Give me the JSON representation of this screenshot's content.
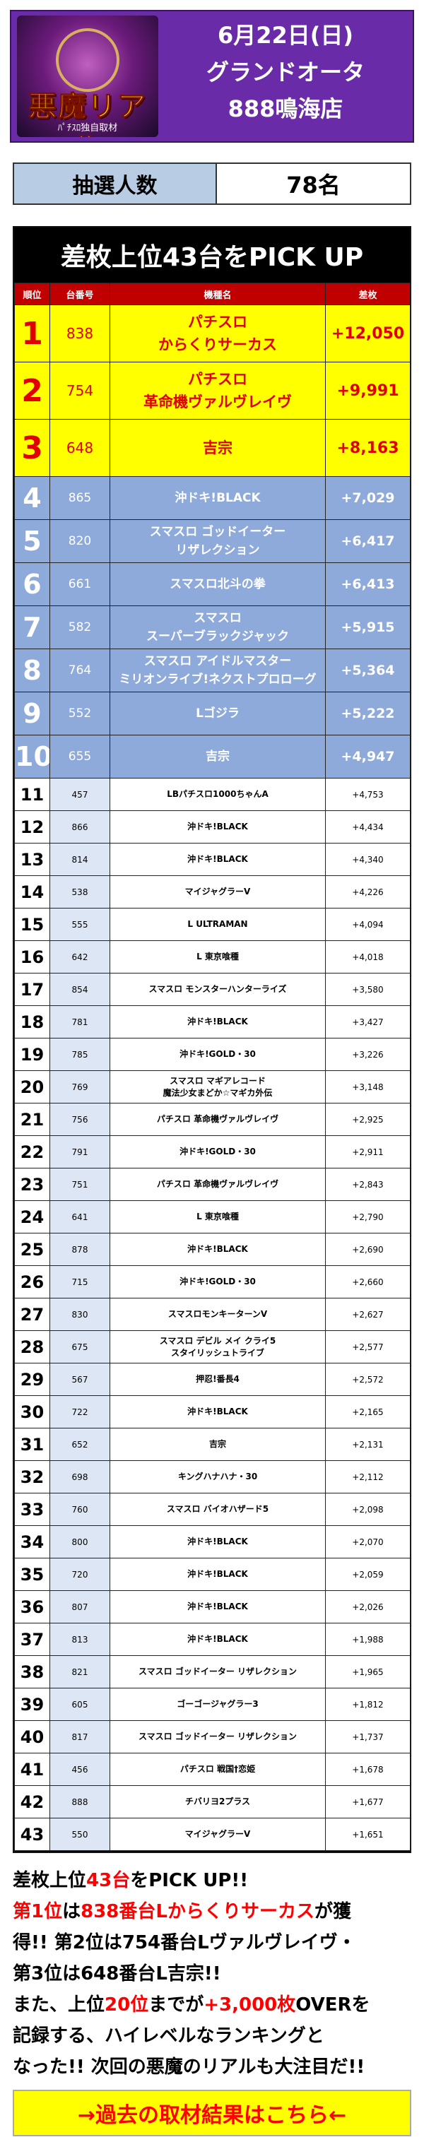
{
  "header": {
    "logo_title": "悪魔リアル",
    "logo_sub": "ﾊﾟﾁｽﾛ独自取材",
    "line1": "6月22日(日)",
    "line2": "グランドオータ",
    "line3": "888鳴海店"
  },
  "lottery": {
    "label": "抽選人数",
    "value": "78名"
  },
  "table": {
    "title": "差枚上位43台をPICK UP",
    "headers": [
      "順位",
      "台番号",
      "機種名",
      "差枚"
    ],
    "rows": [
      {
        "rank": "1",
        "num": "838",
        "name": "パチスロ\nからくりサーカス",
        "diff": "+12,050"
      },
      {
        "rank": "2",
        "num": "754",
        "name": "パチスロ\n革命機ヴァルヴレイヴ",
        "diff": "+9,991"
      },
      {
        "rank": "3",
        "num": "648",
        "name": "吉宗",
        "diff": "+8,163"
      },
      {
        "rank": "4",
        "num": "865",
        "name": "沖ドキ!BLACK",
        "diff": "+7,029"
      },
      {
        "rank": "5",
        "num": "820",
        "name": "スマスロ ゴッドイーター\nリザレクション",
        "diff": "+6,417"
      },
      {
        "rank": "6",
        "num": "661",
        "name": "スマスロ北斗の拳",
        "diff": "+6,413"
      },
      {
        "rank": "7",
        "num": "582",
        "name": "スマスロ\nスーパーブラックジャック",
        "diff": "+5,915"
      },
      {
        "rank": "8",
        "num": "764",
        "name": "スマスロ アイドルマスター\nミリオンライブ!ネクストプロローグ",
        "diff": "+5,364"
      },
      {
        "rank": "9",
        "num": "552",
        "name": "Lゴジラ",
        "diff": "+5,222"
      },
      {
        "rank": "10",
        "num": "655",
        "name": "吉宗",
        "diff": "+4,947"
      },
      {
        "rank": "11",
        "num": "457",
        "name": "LBパチスロ1000ちゃんA",
        "diff": "+4,753"
      },
      {
        "rank": "12",
        "num": "866",
        "name": "沖ドキ!BLACK",
        "diff": "+4,434"
      },
      {
        "rank": "13",
        "num": "814",
        "name": "沖ドキ!BLACK",
        "diff": "+4,340"
      },
      {
        "rank": "14",
        "num": "538",
        "name": "マイジャグラーV",
        "diff": "+4,226"
      },
      {
        "rank": "15",
        "num": "555",
        "name": "L ULTRAMAN",
        "diff": "+4,094"
      },
      {
        "rank": "16",
        "num": "642",
        "name": "L 東京喰種",
        "diff": "+4,018"
      },
      {
        "rank": "17",
        "num": "854",
        "name": "スマスロ モンスターハンターライズ",
        "diff": "+3,580"
      },
      {
        "rank": "18",
        "num": "781",
        "name": "沖ドキ!BLACK",
        "diff": "+3,427"
      },
      {
        "rank": "19",
        "num": "785",
        "name": "沖ドキ!GOLD・30",
        "diff": "+3,226"
      },
      {
        "rank": "20",
        "num": "769",
        "name": "スマスロ マギアレコード\n魔法少女まどか☆マギカ外伝",
        "diff": "+3,148"
      },
      {
        "rank": "21",
        "num": "756",
        "name": "パチスロ 革命機ヴァルヴレイヴ",
        "diff": "+2,925"
      },
      {
        "rank": "22",
        "num": "791",
        "name": "沖ドキ!GOLD・30",
        "diff": "+2,911"
      },
      {
        "rank": "23",
        "num": "751",
        "name": "パチスロ 革命機ヴァルヴレイヴ",
        "diff": "+2,843"
      },
      {
        "rank": "24",
        "num": "641",
        "name": "L 東京喰種",
        "diff": "+2,790"
      },
      {
        "rank": "25",
        "num": "878",
        "name": "沖ドキ!BLACK",
        "diff": "+2,690"
      },
      {
        "rank": "26",
        "num": "715",
        "name": "沖ドキ!GOLD・30",
        "diff": "+2,660"
      },
      {
        "rank": "27",
        "num": "830",
        "name": "スマスロモンキーターンV",
        "diff": "+2,627"
      },
      {
        "rank": "28",
        "num": "675",
        "name": "スマスロ デビル メイ クライ5\nスタイリッシュトライブ",
        "diff": "+2,577"
      },
      {
        "rank": "29",
        "num": "567",
        "name": "押忍!番長4",
        "diff": "+2,572"
      },
      {
        "rank": "30",
        "num": "722",
        "name": "沖ドキ!BLACK",
        "diff": "+2,165"
      },
      {
        "rank": "31",
        "num": "652",
        "name": "吉宗",
        "diff": "+2,131"
      },
      {
        "rank": "32",
        "num": "698",
        "name": "キングハナハナ・30",
        "diff": "+2,112"
      },
      {
        "rank": "33",
        "num": "760",
        "name": "スマスロ バイオハザード5",
        "diff": "+2,098"
      },
      {
        "rank": "34",
        "num": "800",
        "name": "沖ドキ!BLACK",
        "diff": "+2,070"
      },
      {
        "rank": "35",
        "num": "720",
        "name": "沖ドキ!BLACK",
        "diff": "+2,059"
      },
      {
        "rank": "36",
        "num": "807",
        "name": "沖ドキ!BLACK",
        "diff": "+2,026"
      },
      {
        "rank": "37",
        "num": "813",
        "name": "沖ドキ!BLACK",
        "diff": "+1,988"
      },
      {
        "rank": "38",
        "num": "821",
        "name": "スマスロ ゴッドイーター リザレクション",
        "diff": "+1,965"
      },
      {
        "rank": "39",
        "num": "605",
        "name": "ゴーゴージャグラー3",
        "diff": "+1,812"
      },
      {
        "rank": "40",
        "num": "817",
        "name": "スマスロ ゴッドイーター リザレクション",
        "diff": "+1,737"
      },
      {
        "rank": "41",
        "num": "456",
        "name": "パチスロ 戦国†恋姫",
        "diff": "+1,678"
      },
      {
        "rank": "42",
        "num": "888",
        "name": "チバリヨ2プラス",
        "diff": "+1,677"
      },
      {
        "rank": "43",
        "num": "550",
        "name": "マイジャグラーV",
        "diff": "+1,651"
      }
    ]
  },
  "summary": {
    "l1a": "差枚上位",
    "l1b": "43台",
    "l1c": "をPICK UP!!",
    "l2a": "第1位",
    "l2b": "は",
    "l2c": "838番台Lからくりサーカス",
    "l2d": "が獲",
    "l3": "得!! 第2位は754番台Lヴァルヴレイヴ・",
    "l4": "第3位は648番台L吉宗!!",
    "l5a": "また、上位",
    "l5b": "20位",
    "l5c": "までが",
    "l5d": "+3,000枚",
    "l5e": "OVERを",
    "l6": "記録する、ハイレベルなランキングと",
    "l7": "なった!! 次回の悪魔のリアルも大注目だ!!"
  },
  "link": {
    "label": "→過去の取材結果はこちら←"
  },
  "colors": {
    "header_bg": "#6a2ba8",
    "top3_bg": "#ffff00",
    "top10_bg": "#8eaadb",
    "header_row_bg": "#c00000",
    "accent_red": "#ff0000"
  }
}
